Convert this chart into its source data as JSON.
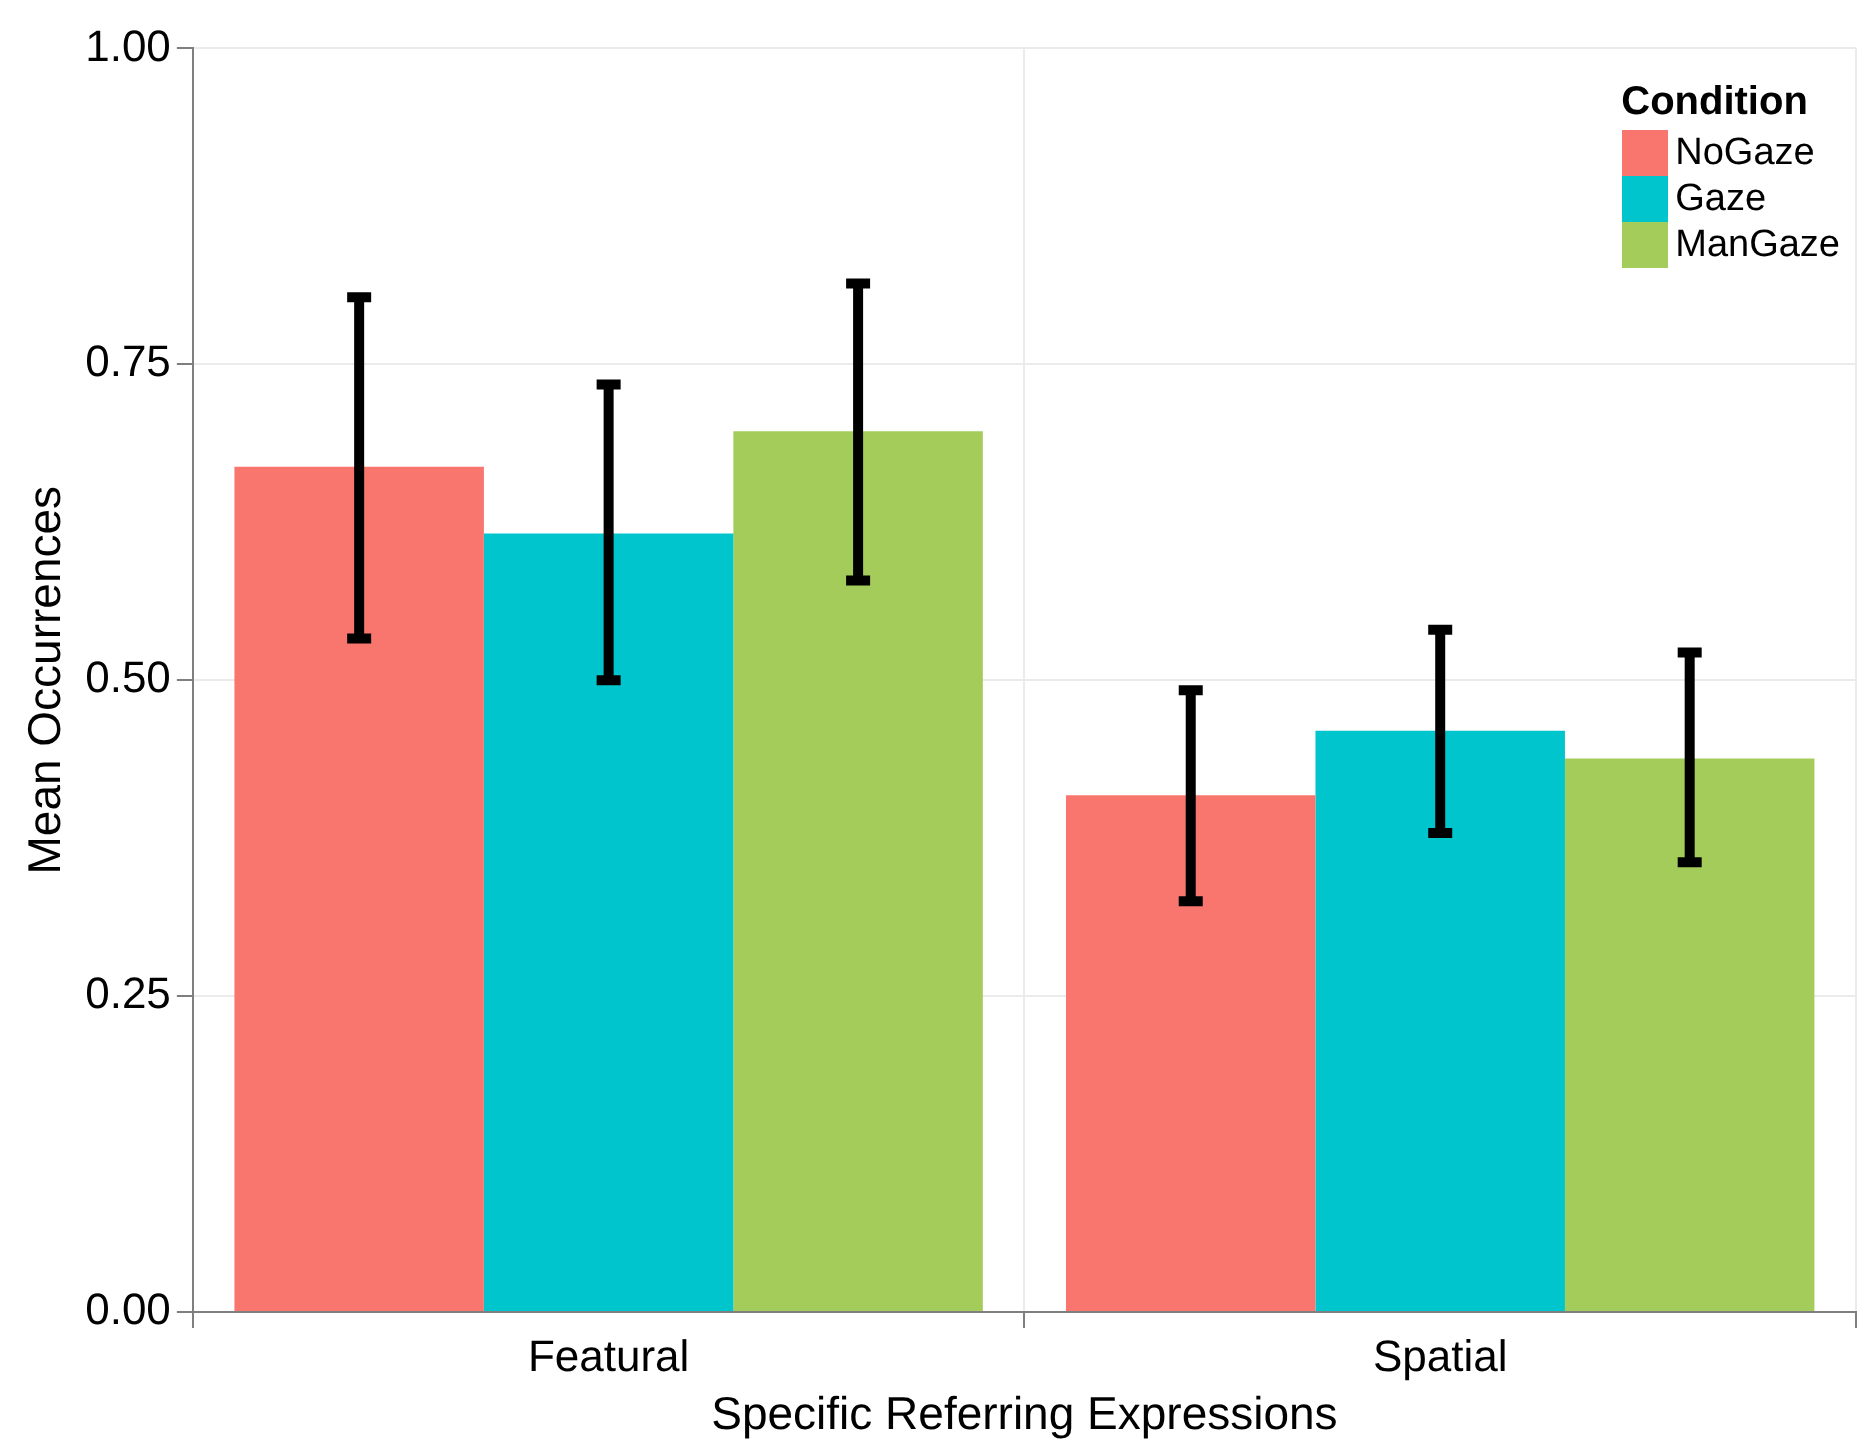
{
  "chart_data": {
    "type": "bar",
    "xlabel": "Specific Referring Expressions",
    "ylabel": "Mean Occurrences",
    "legend_title": "Condition",
    "categories": [
      "Featural",
      "Spatial"
    ],
    "series": [
      {
        "name": "NoGaze",
        "color": "#f8766d",
        "values": [
          0.669,
          0.409
        ],
        "errors": [
          [
            0.533,
            0.803
          ],
          [
            0.325,
            0.492
          ]
        ]
      },
      {
        "name": "Gaze",
        "color": "#00c5cd",
        "values": [
          0.616,
          0.46
        ],
        "errors": [
          [
            0.5,
            0.734
          ],
          [
            0.379,
            0.54
          ]
        ]
      },
      {
        "name": "ManGaze",
        "color": "#a3cc5a",
        "values": [
          0.697,
          0.438
        ],
        "errors": [
          [
            0.579,
            0.814
          ],
          [
            0.356,
            0.522
          ]
        ]
      }
    ],
    "ylim": [
      0,
      1
    ],
    "yticks": [
      {
        "value": 0,
        "label": "0.00"
      },
      {
        "value": 0.25,
        "label": "0.25"
      },
      {
        "value": 0.5,
        "label": "0.50"
      },
      {
        "value": 0.75,
        "label": "0.75"
      },
      {
        "value": 1,
        "label": "1.00"
      }
    ],
    "grid": true,
    "legend": "top right"
  }
}
